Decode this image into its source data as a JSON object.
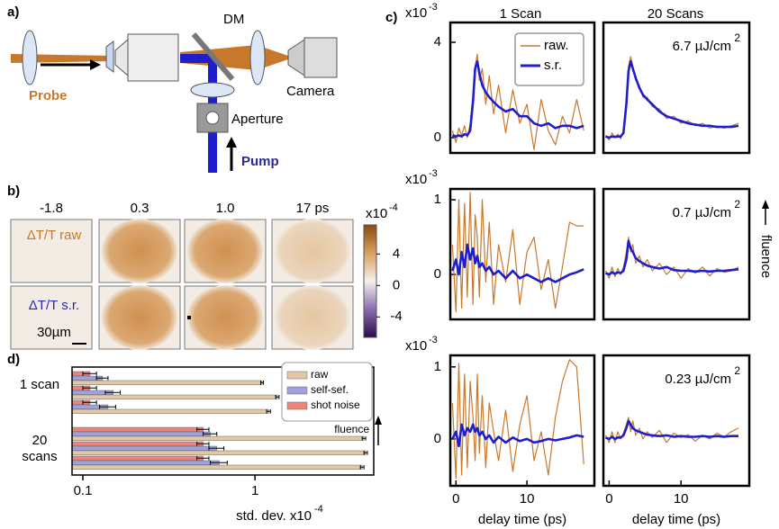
{
  "panel_labels": {
    "a": "a)",
    "b": "b)",
    "c": "c)",
    "d": "d)"
  },
  "setup": {
    "dm": "DM",
    "probe": "Probe",
    "camera": "Camera",
    "aperture": "Aperture",
    "pump": "Pump"
  },
  "images": {
    "delays": [
      "-1.8",
      "0.3",
      "1.0",
      "17 ps"
    ],
    "rows": [
      "ΔT/T raw",
      "ΔT/T s.r."
    ],
    "scale_bar": "30µm",
    "colorbar": {
      "exponent_base": "x10",
      "exponent": "-4",
      "ylim": [
        -6.6,
        7.7
      ],
      "yticks": [
        -4,
        0,
        4
      ]
    }
  },
  "column_titles": [
    "1 Scan",
    "20 Scans"
  ],
  "fluence_label": "fluence",
  "chart_data": [
    {
      "type": "line",
      "x": [
        -0.5,
        0,
        0.4,
        0.8,
        1.2,
        1.6,
        2,
        2.4,
        2.7,
        3,
        3.3,
        3.7,
        4.2,
        4.7,
        5.3,
        6,
        7,
        8,
        9,
        10,
        11,
        12,
        13,
        14,
        15,
        16,
        17,
        18
      ],
      "xlim": [
        -0.8,
        19.5
      ],
      "ylim": [
        -0.64,
        4.83
      ],
      "yticks": [
        0,
        4
      ],
      "y_scale": "x10",
      "y_exponent": "-3",
      "legend": "upper right",
      "series": [
        {
          "name": "raw.",
          "color": "#c8782a",
          "values": [
            0.3,
            -0.2,
            0.4,
            0.1,
            0.5,
            0,
            0.6,
            1.8,
            3.0,
            3.5,
            2.4,
            2.9,
            1.4,
            2.6,
            1.0,
            2.2,
            0.2,
            2.0,
            0.6,
            1.4,
            -0.5,
            1.6,
            0.3,
            -0.3,
            0.9,
            0.2,
            1.6,
            0.3
          ]
        },
        {
          "name": "s.r.",
          "color": "#1e1ecc",
          "values": [
            0.1,
            0.05,
            0.1,
            0.05,
            0.15,
            0.1,
            0.3,
            1.5,
            2.9,
            3.2,
            2.7,
            2.2,
            1.9,
            1.7,
            1.5,
            1.3,
            1.1,
            1.2,
            0.9,
            0.9,
            0.6,
            0.5,
            0.6,
            0.4,
            0.5,
            0.5,
            0.4,
            0.5
          ]
        }
      ]
    },
    {
      "type": "line",
      "x": [
        -0.5,
        0,
        0.4,
        0.8,
        1.2,
        1.6,
        2,
        2.4,
        2.7,
        3,
        3.3,
        3.7,
        4.2,
        4.7,
        5.3,
        6,
        7,
        8,
        9,
        10,
        11,
        12,
        13,
        14,
        15,
        16,
        17,
        18
      ],
      "xlim": [
        -0.8,
        19.5
      ],
      "ylim": [
        -0.64,
        4.83
      ],
      "annotation": "6.7 µJ/cm",
      "annotation_exponent": "2",
      "series": [
        {
          "color": "#c8782a",
          "values": [
            0.1,
            -0.1,
            0.2,
            0,
            0.15,
            -0.05,
            0.3,
            1.6,
            3.0,
            3.4,
            3.0,
            2.4,
            2.2,
            1.7,
            1.7,
            1.3,
            1.2,
            0.8,
            0.9,
            0.6,
            0.7,
            0.5,
            0.6,
            0.4,
            0.5,
            0.4,
            0.5,
            0.6
          ]
        },
        {
          "color": "#1e1ecc",
          "values": [
            0.05,
            0,
            0.05,
            0.03,
            0.05,
            0.05,
            0.2,
            1.4,
            2.8,
            3.2,
            2.9,
            2.5,
            2.1,
            1.8,
            1.6,
            1.4,
            1.1,
            0.9,
            0.8,
            0.7,
            0.6,
            0.55,
            0.5,
            0.5,
            0.45,
            0.45,
            0.45,
            0.5
          ]
        }
      ]
    },
    {
      "type": "line",
      "x": [
        -0.5,
        0,
        0.4,
        0.8,
        1.2,
        1.6,
        2,
        2.4,
        2.7,
        3,
        3.3,
        3.7,
        4.2,
        4.7,
        5.3,
        6,
        7,
        8,
        9,
        10,
        11,
        12,
        13,
        14,
        15,
        16,
        17,
        18
      ],
      "xlim": [
        -0.8,
        19.5
      ],
      "ylim": [
        -0.6,
        1.145
      ],
      "yticks": [
        0,
        1
      ],
      "y_scale": "x10",
      "y_exponent": "-3",
      "series": [
        {
          "color": "#c8782a",
          "values": [
            0.4,
            -0.5,
            1.0,
            -0.45,
            0.95,
            -0.3,
            1.1,
            -0.4,
            0.8,
            0.5,
            -0.3,
            1.0,
            -0.1,
            0.7,
            -0.4,
            0.4,
            -0.1,
            0.6,
            -0.4,
            0.3,
            0.5,
            -0.2,
            0.2,
            -0.45,
            0.1,
            0.7,
            0.65,
            0.65
          ]
        },
        {
          "color": "#1e1ecc",
          "values": [
            0.05,
            0.2,
            0,
            0.3,
            0.1,
            0.4,
            0.2,
            0.35,
            0.15,
            0.25,
            0.1,
            0.15,
            0.05,
            0.1,
            0,
            0.05,
            -0.05,
            0.05,
            -0.05,
            0,
            -0.05,
            -0.1,
            -0.05,
            -0.1,
            -0.05,
            0,
            0.03,
            0.07
          ]
        }
      ]
    },
    {
      "type": "line",
      "x": [
        -0.5,
        0,
        0.4,
        0.8,
        1.2,
        1.6,
        2,
        2.4,
        2.7,
        3,
        3.3,
        3.7,
        4.2,
        4.7,
        5.3,
        6,
        7,
        8,
        9,
        10,
        11,
        12,
        13,
        14,
        15,
        16,
        17,
        18
      ],
      "xlim": [
        -0.8,
        19.5
      ],
      "ylim": [
        -0.6,
        1.145
      ],
      "annotation": "0.7 µJ/cm",
      "annotation_exponent": "2",
      "series": [
        {
          "color": "#c8782a",
          "values": [
            0.05,
            -0.05,
            0.1,
            -0.03,
            0.08,
            0,
            0.1,
            0.3,
            0.5,
            0.3,
            0.4,
            0.15,
            0.25,
            0.1,
            0.2,
            0.05,
            0.15,
            0.0,
            0.1,
            -0.05,
            0.08,
            0.02,
            0.1,
            -0.02,
            0.08,
            0.03,
            0.05,
            0.1
          ]
        },
        {
          "color": "#1e1ecc",
          "values": [
            0.02,
            0,
            0.03,
            0.01,
            0.03,
            0.02,
            0.05,
            0.2,
            0.45,
            0.35,
            0.3,
            0.22,
            0.18,
            0.15,
            0.12,
            0.1,
            0.08,
            0.1,
            0.06,
            0.05,
            0.05,
            0.04,
            0.05,
            0.04,
            0.05,
            0.05,
            0.06,
            0.07
          ]
        }
      ]
    },
    {
      "type": "line",
      "x": [
        -0.5,
        0,
        0.4,
        0.8,
        1.2,
        1.6,
        2,
        2.4,
        2.7,
        3,
        3.3,
        3.7,
        4.2,
        4.7,
        5.3,
        6,
        7,
        8,
        9,
        10,
        11,
        12,
        13,
        14,
        15,
        16,
        17,
        18
      ],
      "xlim": [
        -0.8,
        19.5
      ],
      "ylim": [
        -0.65,
        1.16
      ],
      "yticks": [
        0,
        1
      ],
      "xticks": [
        0,
        10
      ],
      "y_scale": "x10",
      "y_exponent": "-3",
      "xlabel": "delay time (ps)",
      "series": [
        {
          "color": "#c8782a",
          "values": [
            0.5,
            -0.55,
            1.05,
            -0.5,
            0.9,
            -0.4,
            0.8,
            0.3,
            -0.3,
            0.9,
            -0.2,
            0.6,
            -0.4,
            0.5,
            0.1,
            -0.3,
            0.4,
            -0.45,
            0.2,
            0.6,
            -0.3,
            0.1,
            -0.5,
            0.3,
            0.8,
            1.1,
            1.0,
            -0.35
          ]
        },
        {
          "color": "#1e1ecc",
          "values": [
            0,
            0.1,
            -0.1,
            0.2,
            0.05,
            0.15,
            0.1,
            0.2,
            0.1,
            0.15,
            0.05,
            0.1,
            0,
            0.05,
            -0.05,
            0.03,
            -0.05,
            0.02,
            -0.03,
            0,
            -0.05,
            -0.03,
            0,
            -0.02,
            0,
            0.02,
            0.05,
            0.03
          ]
        }
      ]
    },
    {
      "type": "line",
      "x": [
        -0.5,
        0,
        0.4,
        0.8,
        1.2,
        1.6,
        2,
        2.4,
        2.7,
        3,
        3.3,
        3.7,
        4.2,
        4.7,
        5.3,
        6,
        7,
        8,
        9,
        10,
        11,
        12,
        13,
        14,
        15,
        16,
        17,
        18
      ],
      "xlim": [
        -0.8,
        19.5
      ],
      "ylim": [
        -0.65,
        1.16
      ],
      "xticks": [
        0,
        10
      ],
      "xlabel": "delay time (ps)",
      "annotation": "0.23 µJ/cm",
      "annotation_exponent": "2",
      "series": [
        {
          "color": "#c8782a",
          "values": [
            0.05,
            -0.05,
            0.1,
            -0.05,
            0.1,
            0,
            0.08,
            0.2,
            0.3,
            0.1,
            0.25,
            0.05,
            0.15,
            0,
            0.1,
            0.02,
            0.12,
            -0.05,
            0.08,
            0.02,
            0.06,
            -0.03,
            0.05,
            0.0,
            0.08,
            0.03,
            0.1,
            0.15
          ]
        },
        {
          "color": "#1e1ecc",
          "values": [
            0.02,
            0,
            0.03,
            0,
            0.02,
            0.02,
            0.05,
            0.15,
            0.25,
            0.2,
            0.15,
            0.12,
            0.1,
            0.08,
            0.06,
            0.05,
            0.04,
            0.05,
            0.03,
            0.04,
            0.03,
            0.03,
            0.04,
            0.03,
            0.04,
            0.03,
            0.04,
            0.04
          ]
        }
      ]
    },
    {
      "type": "bar",
      "orientation": "horizontal",
      "xscale": "log",
      "xlim": [
        0.0865,
        4.9
      ],
      "xticks": [
        0.1,
        1
      ],
      "xlabel": "std. dev. x10",
      "xlabel_exponent": "-4",
      "group_labels": [
        "1 scan",
        "20 scans"
      ],
      "legend": "upper right",
      "annotation": "fluence",
      "series": [
        {
          "name": "raw",
          "color": "#e4c8a6",
          "values": [
            1.1,
            1.35,
            1.2,
            4.3,
            4.4,
            4.2
          ],
          "errors": [
            0.02,
            0.03,
            0.03,
            0.1,
            0.1,
            0.1
          ]
        },
        {
          "name": "self-sef.",
          "color": "#9ea2dc",
          "values": [
            0.13,
            0.15,
            0.14,
            0.55,
            0.6,
            0.62
          ],
          "errors": [
            0.01,
            0.015,
            0.015,
            0.05,
            0.06,
            0.07
          ]
        },
        {
          "name": "shot noise",
          "color": "#ea857b",
          "values": [
            0.11,
            0.11,
            0.11,
            0.5,
            0.5,
            0.5
          ],
          "errors": [
            0.01,
            0.01,
            0.01,
            0.04,
            0.04,
            0.04
          ]
        }
      ]
    }
  ]
}
